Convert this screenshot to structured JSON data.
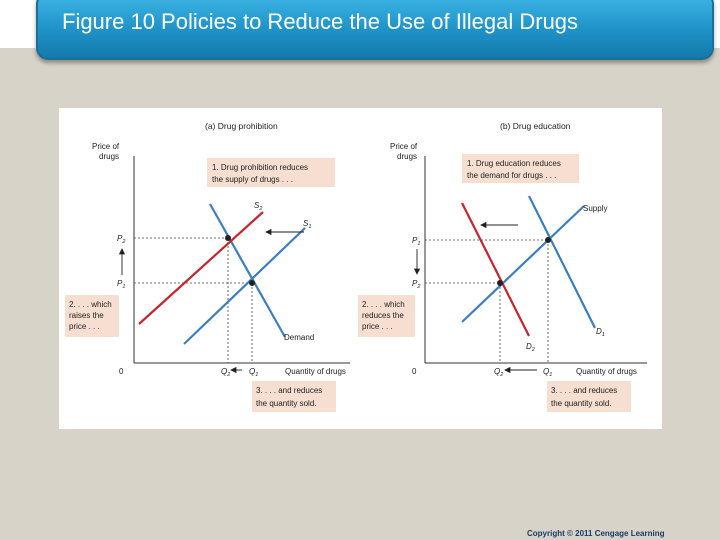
{
  "slide": {
    "title": "Figure 10 Policies to Reduce the Use of Illegal Drugs",
    "copyright": "Copyright © 2011 Cengage Learning"
  },
  "panel_a": {
    "heading": "(a) Drug prohibition",
    "y_axis_label_line1": "Price of",
    "y_axis_label_line2": "drugs",
    "x_axis_label": "Quantity of drugs",
    "origin": "0",
    "price_high": "P",
    "price_high_sub": "2",
    "price_low": "P",
    "price_low_sub": "1",
    "qty_low": "Q",
    "qty_low_sub": "2",
    "qty_high": "Q",
    "qty_high_sub": "1",
    "supply_new": "S",
    "supply_new_sub": "2",
    "supply_old": "S",
    "supply_old_sub": "1",
    "demand": "Demand",
    "note1_line1": "1. Drug prohibition reduces",
    "note1_line2": "the supply of drugs . . .",
    "note2_line1": "2. . . . which",
    "note2_line2": "raises the",
    "note2_line3": "price . . .",
    "note3_line1": "3. . . . and reduces",
    "note3_line2": "the quantity sold."
  },
  "panel_b": {
    "heading": "(b) Drug education",
    "y_axis_label_line1": "Price of",
    "y_axis_label_line2": "drugs",
    "x_axis_label": "Quantity of drugs",
    "origin": "0",
    "price_high": "P",
    "price_high_sub": "1",
    "price_low": "P",
    "price_low_sub": "2",
    "qty_low": "Q",
    "qty_low_sub": "2",
    "qty_high": "Q",
    "qty_high_sub": "1",
    "supply": "Supply",
    "demand_old": "D",
    "demand_old_sub": "1",
    "demand_new": "D",
    "demand_new_sub": "2",
    "note1_line1": "1. Drug education reduces",
    "note1_line2": "the demand for drugs . . .",
    "note2_line1": "2. . . . which",
    "note2_line2": "reduces the",
    "note2_line3": "price . . .",
    "note3_line1": "3. . . . and reduces",
    "note3_line2": "the quantity sold."
  },
  "colors": {
    "original_curve": "#3a7fc1",
    "shifted_curve": "#c8242b",
    "note_box": "#f6dfd0",
    "title_bar": "#1f93c8"
  }
}
